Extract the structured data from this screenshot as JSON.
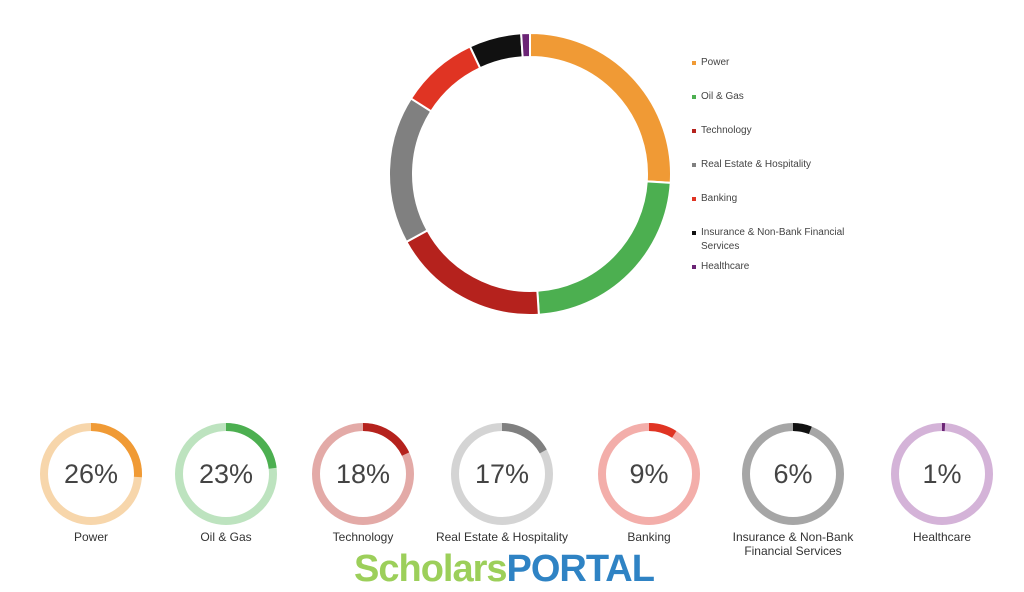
{
  "chart_data": [
    {
      "type": "pie",
      "variant": "donut",
      "categories": [
        "Power",
        "Oil & Gas",
        "Technology",
        "Real Estate & Hospitality",
        "Banking",
        "Insurance & Non-Bank Financial Services",
        "Healthcare"
      ],
      "values": [
        26,
        23,
        18,
        17,
        9,
        6,
        1
      ],
      "colors": [
        "#f09a35",
        "#4caf50",
        "#b5221d",
        "#808080",
        "#e03423",
        "#111111",
        "#6b2475"
      ],
      "legend": "right"
    },
    {
      "type": "pie",
      "variant": "kpi-rings",
      "items": [
        {
          "label": "Power",
          "value": 26,
          "value_text": "26%",
          "color": "#f09a35",
          "track": "#f7d6ab"
        },
        {
          "label": "Oil & Gas",
          "value": 23,
          "value_text": "23%",
          "color": "#4caf50",
          "track": "#bde3bf"
        },
        {
          "label": "Technology",
          "value": 18,
          "value_text": "18%",
          "color": "#b5221d",
          "track": "#e3aaa7"
        },
        {
          "label": "Real Estate & Hospitality",
          "value": 17,
          "value_text": "17%",
          "color": "#808080",
          "track": "#d4d4d4"
        },
        {
          "label": "Banking",
          "value": 9,
          "value_text": "9%",
          "color": "#e03423",
          "track": "#f3aeaa"
        },
        {
          "label": "Insurance & Non-Bank Financial Services",
          "value": 6,
          "value_text": "6%",
          "color": "#111111",
          "track": "#a6a6a6"
        },
        {
          "label": "Healthcare",
          "value": 1,
          "value_text": "1%",
          "color": "#6b2475",
          "track": "#d4b3d8"
        }
      ]
    }
  ],
  "legend": {
    "items": [
      {
        "label": "Power",
        "color": "#f09a35"
      },
      {
        "label": "Oil & Gas",
        "color": "#4caf50"
      },
      {
        "label": "Technology",
        "color": "#b5221d"
      },
      {
        "label": "Real Estate & Hospitality",
        "color": "#808080"
      },
      {
        "label": "Banking",
        "color": "#e03423"
      },
      {
        "label": "Insurance & Non-Bank Financial Services",
        "color": "#111111"
      },
      {
        "label": "Healthcare",
        "color": "#6b2475"
      }
    ]
  },
  "watermark": {
    "part1": "Scholars",
    "part2": "PORTAL"
  }
}
